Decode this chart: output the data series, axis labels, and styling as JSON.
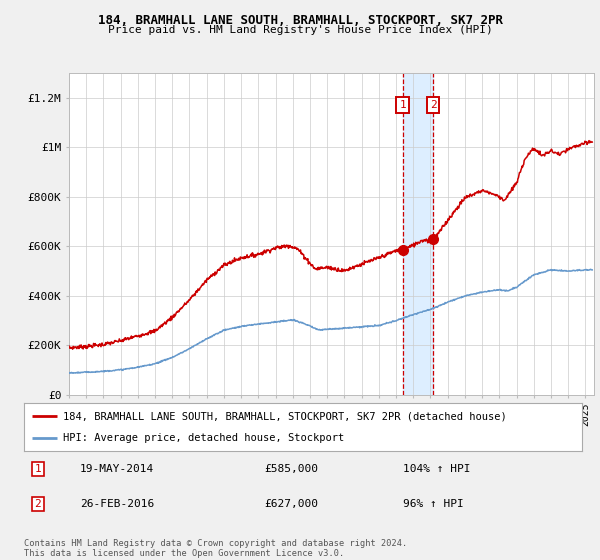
{
  "title": "184, BRAMHALL LANE SOUTH, BRAMHALL, STOCKPORT, SK7 2PR",
  "subtitle": "Price paid vs. HM Land Registry's House Price Index (HPI)",
  "legend_line1": "184, BRAMHALL LANE SOUTH, BRAMHALL, STOCKPORT, SK7 2PR (detached house)",
  "legend_line2": "HPI: Average price, detached house, Stockport",
  "footnote": "Contains HM Land Registry data © Crown copyright and database right 2024.\nThis data is licensed under the Open Government Licence v3.0.",
  "sale1_date": "19-MAY-2014",
  "sale1_price": 585000,
  "sale1_label": "104% ↑ HPI",
  "sale2_date": "26-FEB-2016",
  "sale2_price": 627000,
  "sale2_label": "96% ↑ HPI",
  "sale1_year": 2014.38,
  "sale2_year": 2016.15,
  "red_color": "#cc0000",
  "blue_color": "#6699cc",
  "bg_color": "#f0f0f0",
  "plot_bg": "#ffffff",
  "highlight_color": "#ddeeff",
  "grid_color": "#cccccc",
  "ylim_max": 1300000,
  "xlim_start": 1995,
  "xlim_end": 2025.5,
  "yticks": [
    0,
    200000,
    400000,
    600000,
    800000,
    1000000,
    1200000
  ],
  "ylabels": [
    "£0",
    "£200K",
    "£400K",
    "£600K",
    "£800K",
    "£1M",
    "£1.2M"
  ]
}
